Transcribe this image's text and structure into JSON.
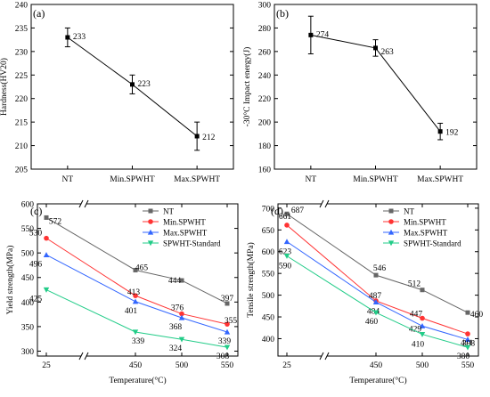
{
  "chart_data": [
    {
      "panel_label": "(a)",
      "type": "line",
      "categories": [
        "NT",
        "Min.SPWHT",
        "Max.SPWHT"
      ],
      "values": [
        233,
        223,
        212
      ],
      "data_labels": [
        "233",
        "223",
        "212"
      ],
      "error": [
        2,
        2,
        3
      ],
      "ylabel": "Hardness(HV20)",
      "xlabel": "",
      "ylim": [
        205,
        240
      ],
      "yticks": [
        "205",
        "210",
        "215",
        "220",
        "225",
        "230",
        "235",
        "240"
      ],
      "color": "#000000"
    },
    {
      "panel_label": "(b)",
      "type": "line",
      "categories": [
        "NT",
        "Min.SPWHT",
        "Max.SPWHT"
      ],
      "values": [
        274,
        263,
        192
      ],
      "data_labels": [
        "274",
        "263",
        "192"
      ],
      "error": [
        16,
        7,
        7
      ],
      "ylabel": "-30°C Impact energy(J)",
      "xlabel": "",
      "ylim": [
        160,
        300
      ],
      "yticks": [
        "160",
        "180",
        "200",
        "220",
        "240",
        "260",
        "280",
        "300"
      ],
      "color": "#000000"
    },
    {
      "panel_label": "(c)",
      "type": "line",
      "categories": [
        "25",
        "450",
        "500",
        "550"
      ],
      "x": [
        25,
        450,
        500,
        550
      ],
      "ylabel": "Yield strength(MPa)",
      "xlabel": "Temperature(°C)",
      "ylim": [
        290,
        600
      ],
      "yticks": [
        "300",
        "350",
        "400",
        "450",
        "500",
        "550",
        "600"
      ],
      "axis_break": true,
      "legend_position": "top-right",
      "series": [
        {
          "name": "NT",
          "values": [
            572,
            465,
            444,
            397
          ],
          "labels": [
            "572",
            "465",
            "444",
            "397"
          ],
          "color": "#666666",
          "marker": "square"
        },
        {
          "name": "Min.SPWHT",
          "values": [
            530,
            413,
            376,
            355
          ],
          "labels": [
            "530",
            "413",
            "376",
            "355"
          ],
          "color": "#ff3333",
          "marker": "circle"
        },
        {
          "name": "Max.SPWHT",
          "values": [
            496,
            401,
            368,
            339
          ],
          "labels": [
            "496",
            "401",
            "368",
            "339"
          ],
          "color": "#3366ff",
          "marker": "triangle-up"
        },
        {
          "name": "SPWHT-Standard",
          "values": [
            425,
            339,
            324,
            308
          ],
          "labels": [
            "425",
            "339",
            "324",
            "308"
          ],
          "color": "#22cc88",
          "marker": "triangle-down"
        }
      ]
    },
    {
      "panel_label": "(d)",
      "type": "line",
      "categories": [
        "25",
        "450",
        "500",
        "550"
      ],
      "x": [
        25,
        450,
        500,
        550
      ],
      "ylabel": "Tensile strength(MPa)",
      "xlabel": "Temperature(°C)",
      "ylim": [
        360,
        710
      ],
      "yticks": [
        "400",
        "450",
        "500",
        "550",
        "600",
        "650",
        "700"
      ],
      "axis_break": true,
      "legend_position": "top-right",
      "series": [
        {
          "name": "NT",
          "values": [
            687,
            546,
            512,
            460
          ],
          "labels": [
            "687",
            "546",
            "512",
            "460"
          ],
          "color": "#666666",
          "marker": "square"
        },
        {
          "name": "Min.SPWHT",
          "values": [
            661,
            487,
            447,
            411
          ],
          "labels": [
            "661",
            "487",
            "447",
            "411"
          ],
          "color": "#ff3333",
          "marker": "circle"
        },
        {
          "name": "Max.SPWHT",
          "values": [
            623,
            484,
            429,
            398
          ],
          "labels": [
            "623",
            "484",
            "429",
            "398"
          ],
          "color": "#3366ff",
          "marker": "triangle-up"
        },
        {
          "name": "SPWHT-Standard",
          "values": [
            590,
            460,
            410,
            380
          ],
          "labels": [
            "590",
            "460",
            "410",
            "380"
          ],
          "color": "#22cc88",
          "marker": "triangle-down"
        }
      ]
    }
  ]
}
